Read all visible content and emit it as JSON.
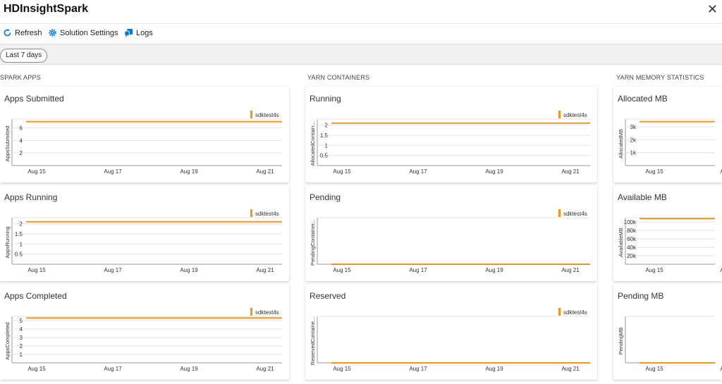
{
  "window": {
    "title": "HDInsightSpark"
  },
  "toolbar": {
    "refresh_label": "Refresh",
    "solution_settings_label": "Solution Settings",
    "logs_label": "Logs"
  },
  "filter": {
    "time_range": "Last 7 days"
  },
  "accent_color": "#f7941e",
  "icon_color": "#0078d4",
  "sections": [
    {
      "title": "SPARK APPS",
      "cards": [
        {
          "title": "Apps Submitted",
          "chart_data": {
            "type": "line",
            "ylabel": "AppsSubmitted",
            "yticks": [
              "6",
              "4",
              "2"
            ],
            "ylim": [
              0,
              7.4
            ],
            "xticks": [
              "Aug 15",
              "Aug 17",
              "Aug 19",
              "Aug 21"
            ],
            "legend": "sdktest4s",
            "series": [
              {
                "name": "sdktest4s",
                "values": [
                  7,
                  7
                ]
              }
            ]
          }
        },
        {
          "title": "Apps Running",
          "chart_data": {
            "type": "line",
            "ylabel": "AppsRunning",
            "yticks": [
              "2",
              "1.5",
              "1",
              "0.5"
            ],
            "ylim": [
              0,
              2.3
            ],
            "xticks": [
              "Aug 15",
              "Aug 17",
              "Aug 19",
              "Aug 21"
            ],
            "legend": "sdktest4s",
            "series": [
              {
                "name": "sdktest4s",
                "values": [
                  2.1,
                  2.1
                ]
              }
            ]
          }
        },
        {
          "title": "Apps Completed",
          "chart_data": {
            "type": "line",
            "ylabel": "AppsCompleted",
            "yticks": [
              "5",
              "4",
              "3",
              "2",
              "1"
            ],
            "ylim": [
              0,
              5.5
            ],
            "xticks": [
              "Aug 15",
              "Aug 17",
              "Aug 19",
              "Aug 21"
            ],
            "legend": "sdktest4s",
            "series": [
              {
                "name": "sdktest4s",
                "values": [
                  5.3,
                  5.3
                ]
              }
            ]
          }
        }
      ]
    },
    {
      "title": "YARN CONTAINERS",
      "cards": [
        {
          "title": "Running",
          "chart_data": {
            "type": "line",
            "ylabel": "AllocatedContain...",
            "yticks": [
              "2",
              "1.5",
              "1",
              "0.5"
            ],
            "ylim": [
              0,
              2.3
            ],
            "xticks": [
              "Aug 15",
              "Aug 17",
              "Aug 19",
              "Aug 21"
            ],
            "legend": "sdktest4s",
            "series": [
              {
                "name": "sdktest4s",
                "values": [
                  2.1,
                  2.1
                ]
              }
            ]
          }
        },
        {
          "title": "Pending",
          "chart_data": {
            "type": "line",
            "ylabel": "PendingContainer...",
            "yticks": [],
            "ylim": [
              0,
              1
            ],
            "xticks": [
              "Aug 15",
              "Aug 17",
              "Aug 19",
              "Aug 21"
            ],
            "legend": "sdktest4s",
            "series": [
              {
                "name": "sdktest4s",
                "values": [
                  0,
                  0
                ]
              }
            ]
          }
        },
        {
          "title": "Reserved",
          "chart_data": {
            "type": "line",
            "ylabel": "ReservedContaine...",
            "yticks": [],
            "ylim": [
              0,
              1
            ],
            "xticks": [
              "Aug 15",
              "Aug 17",
              "Aug 19",
              "Aug 21"
            ],
            "legend": "sdktest4s",
            "series": [
              {
                "name": "sdktest4s",
                "values": [
                  0,
                  0
                ]
              }
            ]
          }
        }
      ]
    },
    {
      "title": "YARN MEMORY STATISTICS",
      "cards": [
        {
          "title": "Allocated MB",
          "chart_data": {
            "type": "line",
            "ylabel": "AllocatedMB",
            "yticks": [
              "3k",
              "2k",
              "1k"
            ],
            "ylim": [
              0,
              3600
            ],
            "xticks": [
              "Aug 15",
              "A"
            ],
            "legend": "",
            "series": [
              {
                "name": "",
                "values": [
                  3400,
                  3400
                ]
              }
            ]
          }
        },
        {
          "title": "Available MB",
          "chart_data": {
            "type": "line",
            "ylabel": "AvailableMB",
            "yticks": [
              "100k",
              "80k",
              "60k",
              "40k",
              "20k"
            ],
            "ylim": [
              0,
              110000
            ],
            "xticks": [
              "Aug 15",
              "A"
            ],
            "legend": "",
            "series": [
              {
                "name": "",
                "values": [
                  108000,
                  108000
                ]
              }
            ]
          }
        },
        {
          "title": "Pending MB",
          "chart_data": {
            "type": "line",
            "ylabel": "PendingMB",
            "yticks": [],
            "ylim": [
              0,
              1
            ],
            "xticks": [
              "Aug 15",
              "A"
            ],
            "legend": "",
            "series": [
              {
                "name": "",
                "values": [
                  0,
                  0
                ]
              }
            ]
          }
        }
      ]
    }
  ]
}
